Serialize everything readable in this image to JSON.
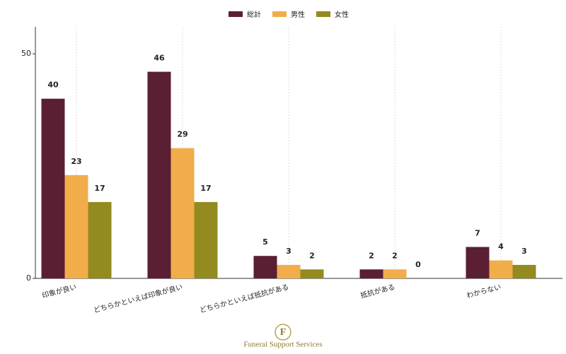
{
  "chart_data": {
    "type": "bar",
    "categories": [
      "印象が良い",
      "どちらかといえば印象が良い",
      "どちらかといえば抵抗がある",
      "抵抗がある",
      "わからない"
    ],
    "series": [
      {
        "name": "総計",
        "color": "#5a1f33",
        "values": [
          40,
          46,
          5,
          2,
          7
        ]
      },
      {
        "name": "男性",
        "color": "#f0ad4a",
        "values": [
          23,
          29,
          3,
          2,
          4
        ]
      },
      {
        "name": "女性",
        "color": "#938a20",
        "values": [
          17,
          17,
          2,
          0,
          3
        ]
      }
    ],
    "ylim": [
      0,
      56
    ],
    "yticks": [
      0,
      50
    ],
    "grid": "x",
    "legend": "top"
  },
  "footer": {
    "logo_letter": "F",
    "brand": "Funeral Support Services"
  }
}
